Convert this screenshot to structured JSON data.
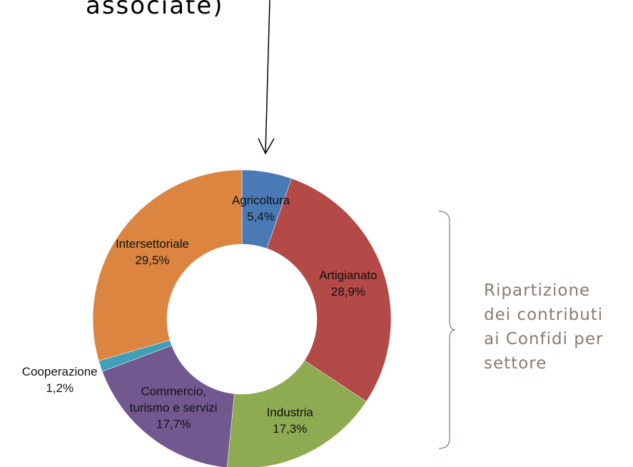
{
  "header": {
    "title": "associate)"
  },
  "chart_data": {
    "type": "donut",
    "categories": [
      "Agricoltura",
      "Artigianato",
      "Industria",
      "Commercio, turismo e servizi",
      "Cooperazione",
      "Intersettoriale"
    ],
    "values": [
      5.4,
      28.9,
      17.3,
      17.7,
      1.2,
      29.5
    ],
    "value_labels": [
      "5,4%",
      "28,9%",
      "17,3%",
      "17,7%",
      "1,2%",
      "29,5%"
    ],
    "colors": [
      "#4a7ab5",
      "#b34a47",
      "#8fab52",
      "#71588f",
      "#3fa0b8",
      "#dc8541"
    ]
  },
  "side_note": {
    "lines": [
      "Ripartizione",
      "dei contributi",
      "ai Confidi per",
      "settore"
    ]
  }
}
